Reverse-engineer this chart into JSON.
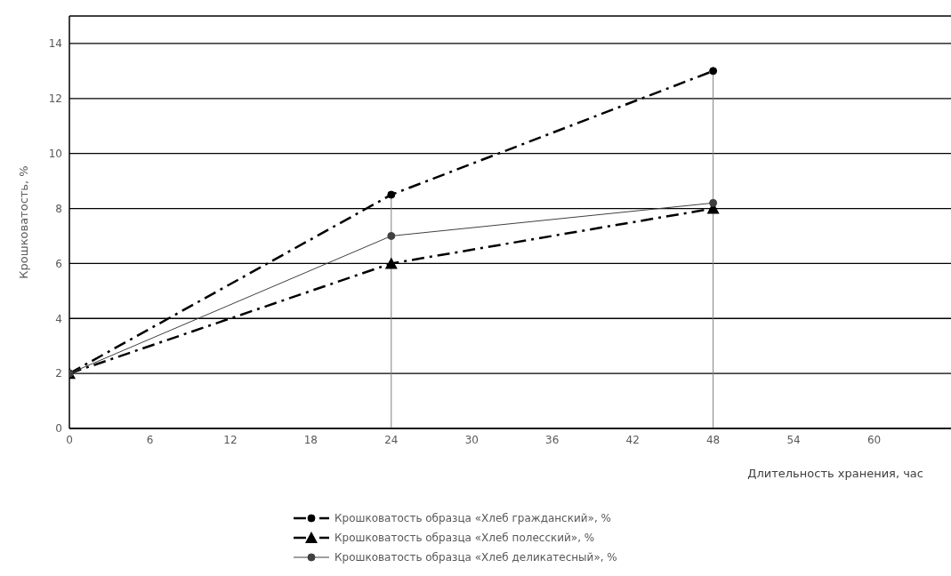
{
  "chart_data": {
    "type": "line",
    "xlabel": "Длительность хранения, час",
    "ylabel": "Крошковатость, %",
    "x": [
      0,
      24,
      48
    ],
    "xlim": [
      0,
      66
    ],
    "xticks": [
      0,
      6,
      12,
      18,
      24,
      30,
      36,
      42,
      48,
      54,
      60
    ],
    "ylim": [
      0,
      15
    ],
    "yticks": [
      0,
      2,
      4,
      6,
      8,
      10,
      12,
      14
    ],
    "grid": "y",
    "legend": "bottom",
    "ref_lines": [
      {
        "axis": "x",
        "value": 24,
        "label": null,
        "color": "#7f7f7f"
      },
      {
        "axis": "x",
        "value": 48,
        "label": null,
        "color": "#7f7f7f"
      }
    ],
    "series": [
      {
        "name": "Крошковатость образца «Хлеб гражданский», %",
        "color": "#000000",
        "values": [
          2,
          8.5,
          13
        ],
        "marker": "circle",
        "line_style": "dashed"
      },
      {
        "name": "Крошковатость образца «Хлеб полесский», %",
        "color": "#000000",
        "values": [
          2,
          6,
          8
        ],
        "marker": "triangle",
        "line_style": "dashed"
      },
      {
        "name": "Крошковатость образца «Хлеб деликатесный», %",
        "color": "#404040",
        "values": [
          2,
          7,
          8.2
        ],
        "marker": "circle",
        "line_style": "solid"
      }
    ]
  }
}
